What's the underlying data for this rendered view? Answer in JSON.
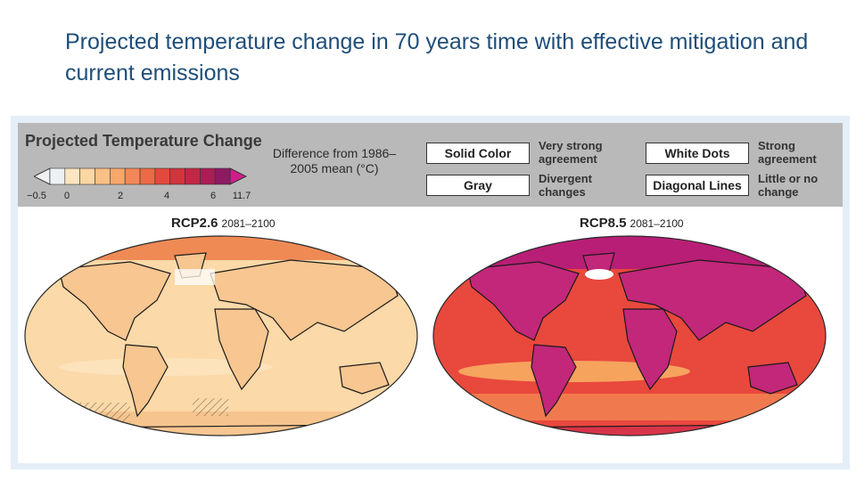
{
  "slide": {
    "title": "Projected temperature change in 70 years time with effective mitigation and current emissions"
  },
  "figure": {
    "legend_title": "Projected Temperature Change",
    "difference_label": "Difference from 1986–2005 mean (°C)",
    "scale": {
      "min_label": "−0.5",
      "max_label": "11.7",
      "ticks": [
        "0",
        "2",
        "4",
        "6"
      ],
      "colors": [
        "#eef1f4",
        "#fde5c0",
        "#fbd7a4",
        "#f9c184",
        "#f6a86b",
        "#f28857",
        "#ec6a46",
        "#e14a3c",
        "#d2343b",
        "#c02846",
        "#a91e55",
        "#8f1a64"
      ]
    },
    "keys": [
      {
        "box": "Solid Color",
        "description": "Very strong agreement"
      },
      {
        "box": "Gray",
        "description": "Divergent changes"
      },
      {
        "box": "White Dots",
        "description": "Strong agreement"
      },
      {
        "box": "Diagonal Lines",
        "description": "Little or no change"
      }
    ],
    "maps": [
      {
        "scenario": "RCP2.6",
        "period": "2081–2100",
        "ocean_color": "#fbd9a8",
        "land_color": "#f8c690",
        "arctic_color": "#ef8a55"
      },
      {
        "scenario": "RCP8.5",
        "period": "2081–2100",
        "ocean_color": "#e9483d",
        "land_color": "#c2277a",
        "arctic_color": "#b81e75"
      }
    ]
  }
}
